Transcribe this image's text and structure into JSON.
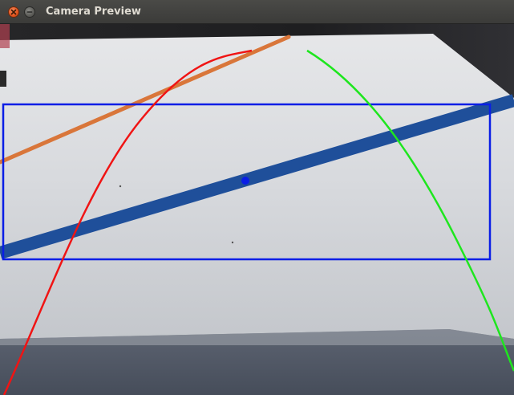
{
  "window": {
    "title": "Camera Preview",
    "controls": {
      "close_icon": "close-icon",
      "minimize_icon": "minimize-icon"
    }
  },
  "preview": {
    "scene": "camera-feed-tabletop",
    "overlays": {
      "bounding_box_color": "#0a1ee6",
      "center_point_color": "#0a1ee6",
      "left_curve_color": "#f01414",
      "right_curve_color": "#1ee61e",
      "tape_line_color": "#1f4f9a",
      "orange_line_color": "#d9763a"
    }
  }
}
